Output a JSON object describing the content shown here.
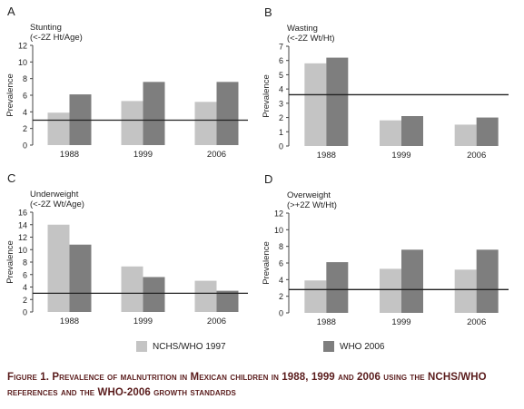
{
  "colors": {
    "nchs": "#c4c4c4",
    "who": "#7e7e7e",
    "axis": "#444444",
    "refline": "#222222",
    "caption": "#5a1c1c"
  },
  "legend": {
    "nchs_label": "NCHS/WHO 1997",
    "who_label": "WHO 2006"
  },
  "caption": {
    "text": "Figure 1. Prevalence of malnutrition in Mexican children in 1988, 1999 and 2006 using the NCHS/WHO references and the WHO-2006 growth standards"
  },
  "chart_data": [
    {
      "panel_letter": "A",
      "type": "bar",
      "title": "Stunting",
      "subtitle": "(<-2Z Ht/Age)",
      "ylabel": "Prevalence",
      "xlabel": "",
      "categories": [
        "1988",
        "1999",
        "2006"
      ],
      "series": [
        {
          "name": "NCHS/WHO 1997",
          "values": [
            3.9,
            5.3,
            5.2
          ]
        },
        {
          "name": "WHO 2006",
          "values": [
            6.1,
            7.6,
            7.6
          ]
        }
      ],
      "ylim": [
        0,
        12
      ],
      "yticks": [
        0,
        2,
        4,
        6,
        8,
        10,
        12
      ],
      "reference_line": 3,
      "grid": false
    },
    {
      "panel_letter": "B",
      "type": "bar",
      "title": "Wasting",
      "subtitle": "(<-2Z Wt/Ht)",
      "ylabel": "Prevalence",
      "xlabel": "",
      "categories": [
        "1988",
        "1999",
        "2006"
      ],
      "series": [
        {
          "name": "NCHS/WHO 1997",
          "values": [
            5.8,
            1.8,
            1.5
          ]
        },
        {
          "name": "WHO 2006",
          "values": [
            6.2,
            2.1,
            2.0
          ]
        }
      ],
      "ylim": [
        0,
        7
      ],
      "yticks": [
        0,
        1,
        2,
        3,
        4,
        5,
        6,
        7
      ],
      "reference_line": 3.6,
      "grid": false
    },
    {
      "panel_letter": "C",
      "type": "bar",
      "title": "Underweight",
      "subtitle": "(<-2Z Wt/Age)",
      "ylabel": "Prevalence",
      "xlabel": "",
      "categories": [
        "1988",
        "1999",
        "2006"
      ],
      "series": [
        {
          "name": "NCHS/WHO 1997",
          "values": [
            14.0,
            7.3,
            5.0
          ]
        },
        {
          "name": "WHO 2006",
          "values": [
            10.8,
            5.6,
            3.4
          ]
        }
      ],
      "ylim": [
        0,
        16
      ],
      "yticks": [
        0,
        2,
        4,
        6,
        8,
        10,
        12,
        14,
        16
      ],
      "reference_line": 3,
      "grid": false
    },
    {
      "panel_letter": "D",
      "type": "bar",
      "title": "Overweight",
      "subtitle": "(>+2Z Wt/Ht)",
      "ylabel": "Prevalence",
      "xlabel": "",
      "categories": [
        "1988",
        "1999",
        "2006"
      ],
      "series": [
        {
          "name": "NCHS/WHO 1997",
          "values": [
            3.9,
            5.3,
            5.2
          ]
        },
        {
          "name": "WHO 2006",
          "values": [
            6.1,
            7.6,
            7.6
          ]
        }
      ],
      "ylim": [
        0,
        12
      ],
      "yticks": [
        0,
        2,
        4,
        6,
        8,
        10,
        12
      ],
      "reference_line": 2.8,
      "grid": false
    }
  ]
}
